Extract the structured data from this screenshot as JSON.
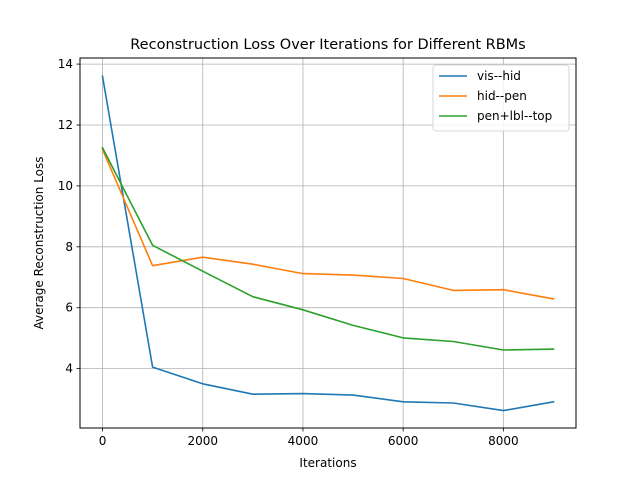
{
  "chart_data": {
    "type": "line",
    "title": "Reconstruction Loss Over Iterations for Different RBMs",
    "xlabel": "Iterations",
    "ylabel": "Average Reconstruction Loss",
    "x": [
      0,
      1000,
      2000,
      3000,
      4000,
      5000,
      6000,
      7000,
      8000,
      9000
    ],
    "xlim": [
      -450,
      9450
    ],
    "ylim": [
      2.05,
      14.2
    ],
    "xticks": [
      0,
      2000,
      4000,
      6000,
      8000
    ],
    "yticks": [
      4,
      6,
      8,
      10,
      12,
      14
    ],
    "grid": true,
    "legend_position": "top-right",
    "series": [
      {
        "name": "vis--hid",
        "color": "#1f77b4",
        "values": [
          13.6,
          4.05,
          3.5,
          3.16,
          3.18,
          3.13,
          2.91,
          2.87,
          2.62,
          2.91
        ]
      },
      {
        "name": "hid--pen",
        "color": "#ff7f0e",
        "values": [
          11.2,
          7.38,
          7.66,
          7.43,
          7.12,
          7.07,
          6.96,
          6.57,
          6.59,
          6.29
        ]
      },
      {
        "name": "pen+lbl--top",
        "color": "#2ca02c",
        "values": [
          11.25,
          8.05,
          7.2,
          6.36,
          5.93,
          5.42,
          5.01,
          4.89,
          4.61,
          4.64
        ]
      }
    ]
  }
}
